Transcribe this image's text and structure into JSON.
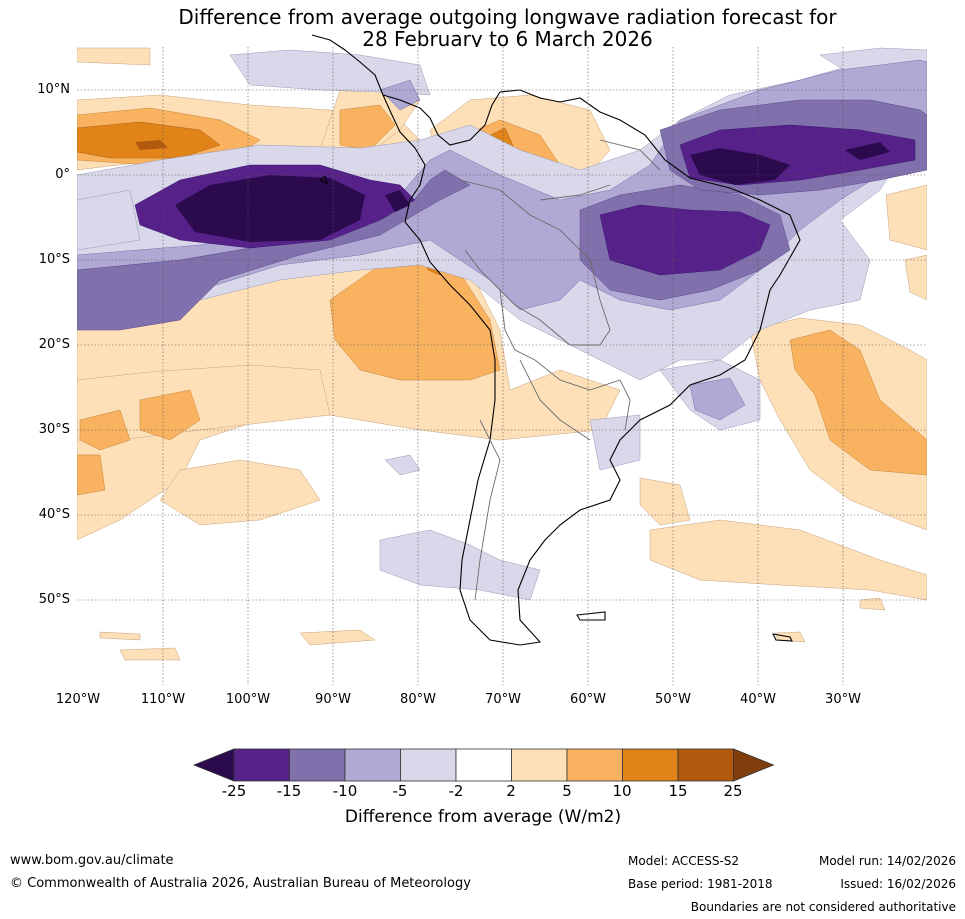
{
  "title_line1": "Difference from average outgoing longwave radiation forecast for",
  "title_line2": "28 February to 6 March 2026",
  "lat_labels": [
    "10°N",
    "0°",
    "10°S",
    "20°S",
    "30°S",
    "40°S",
    "50°S"
  ],
  "lon_labels": [
    "120°W",
    "110°W",
    "100°W",
    "90°W",
    "80°W",
    "70°W",
    "60°W",
    "50°W",
    "40°W",
    "30°W"
  ],
  "colorbar": {
    "ticks": [
      "-25",
      "-15",
      "-10",
      "-5",
      "-2",
      "2",
      "5",
      "10",
      "15",
      "25"
    ],
    "colors": [
      "#2b0a4d",
      "#56228a",
      "#8070ac",
      "#b0a9d3",
      "#d9d8ea",
      "#ffffff",
      "#fde0b8",
      "#f9b25f",
      "#e0841a",
      "#b3590e",
      "#7f3e0b"
    ],
    "label": "Difference from average (W/m2)"
  },
  "footer": {
    "website": "www.bom.gov.au/climate",
    "copyright": "© Commonwealth of Australia 2026, Australian Bureau of Meteorology",
    "model": "Model: ACCESS-S2",
    "base_period": "Base period: 1981-2018",
    "model_run": "Model run: 14/02/2026",
    "issued": "Issued: 16/02/2026",
    "boundaries": "Boundaries are not considered authoritative"
  }
}
